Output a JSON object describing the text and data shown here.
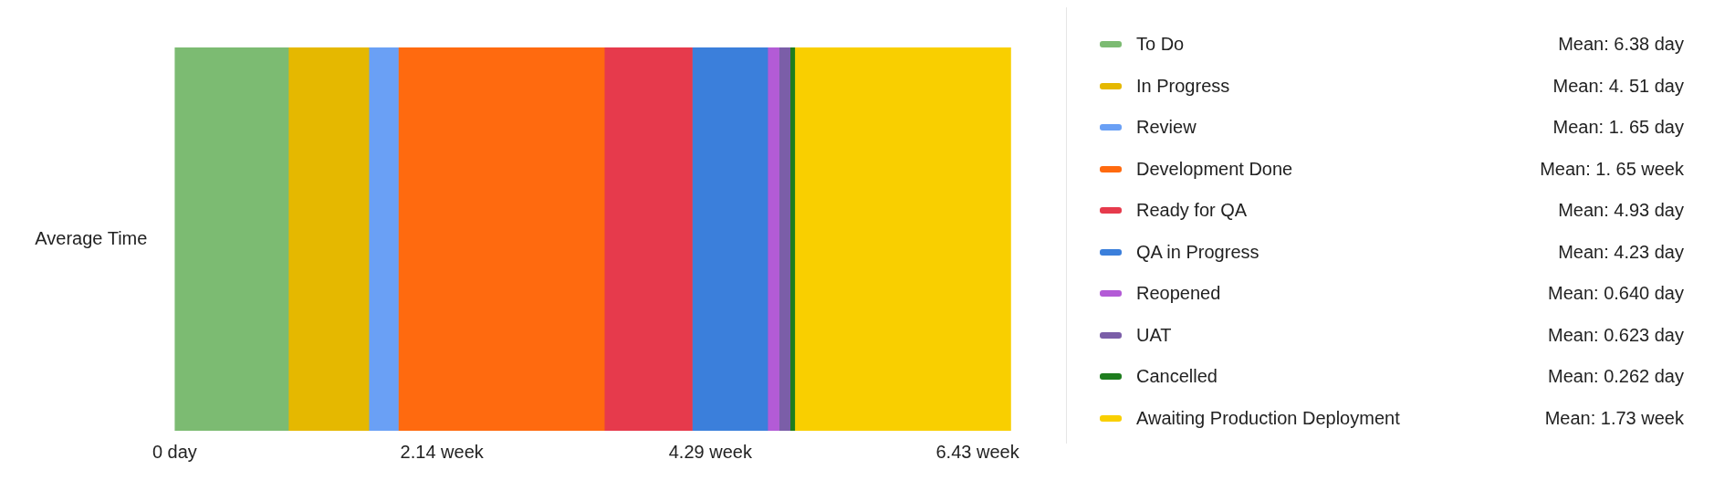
{
  "chart_data": {
    "type": "bar",
    "orientation": "horizontal",
    "stacked": true,
    "categories": [
      "Average Time"
    ],
    "xlim": [
      0,
      6.7
    ],
    "xticks": [
      {
        "value": 0,
        "label": "0 day"
      },
      {
        "value": 2.14,
        "label": "2.14 week"
      },
      {
        "value": 4.29,
        "label": "4.29 week"
      },
      {
        "value": 6.43,
        "label": "6.43 week"
      }
    ],
    "grid": false,
    "legend": "right",
    "annotations": [
      "Mean: 6.38 day",
      "Mean: 4. 51 day",
      "Mean: 1. 65 day",
      "Mean: 1. 65 week",
      "Mean: 4.93 day",
      "Mean: 4.23 day",
      "Mean: 0.640 day",
      "Mean: 0.623 day",
      "Mean: 0.262 day",
      "Mean: 1.73 week"
    ],
    "series": [
      {
        "name": "To Do",
        "color": "#7cbb72",
        "values": [
          0.911
        ]
      },
      {
        "name": "In Progress",
        "color": "#e5b800",
        "values": [
          0.644
        ]
      },
      {
        "name": "Review",
        "color": "#6aa0f5",
        "values": [
          0.236
        ]
      },
      {
        "name": "Development Done",
        "color": "#ff6a0f",
        "values": [
          1.65
        ]
      },
      {
        "name": "Ready for QA",
        "color": "#e63a4c",
        "values": [
          0.704
        ]
      },
      {
        "name": "QA in Progress",
        "color": "#3b7fdb",
        "values": [
          0.604
        ]
      },
      {
        "name": "Reopened",
        "color": "#b35bd6",
        "values": [
          0.091
        ]
      },
      {
        "name": "UAT",
        "color": "#7b5ea8",
        "values": [
          0.089
        ]
      },
      {
        "name": "Cancelled",
        "color": "#1e7d1e",
        "values": [
          0.037
        ]
      },
      {
        "name": "Awaiting Production Deployment",
        "color": "#f9cf00",
        "values": [
          1.73
        ]
      }
    ]
  }
}
